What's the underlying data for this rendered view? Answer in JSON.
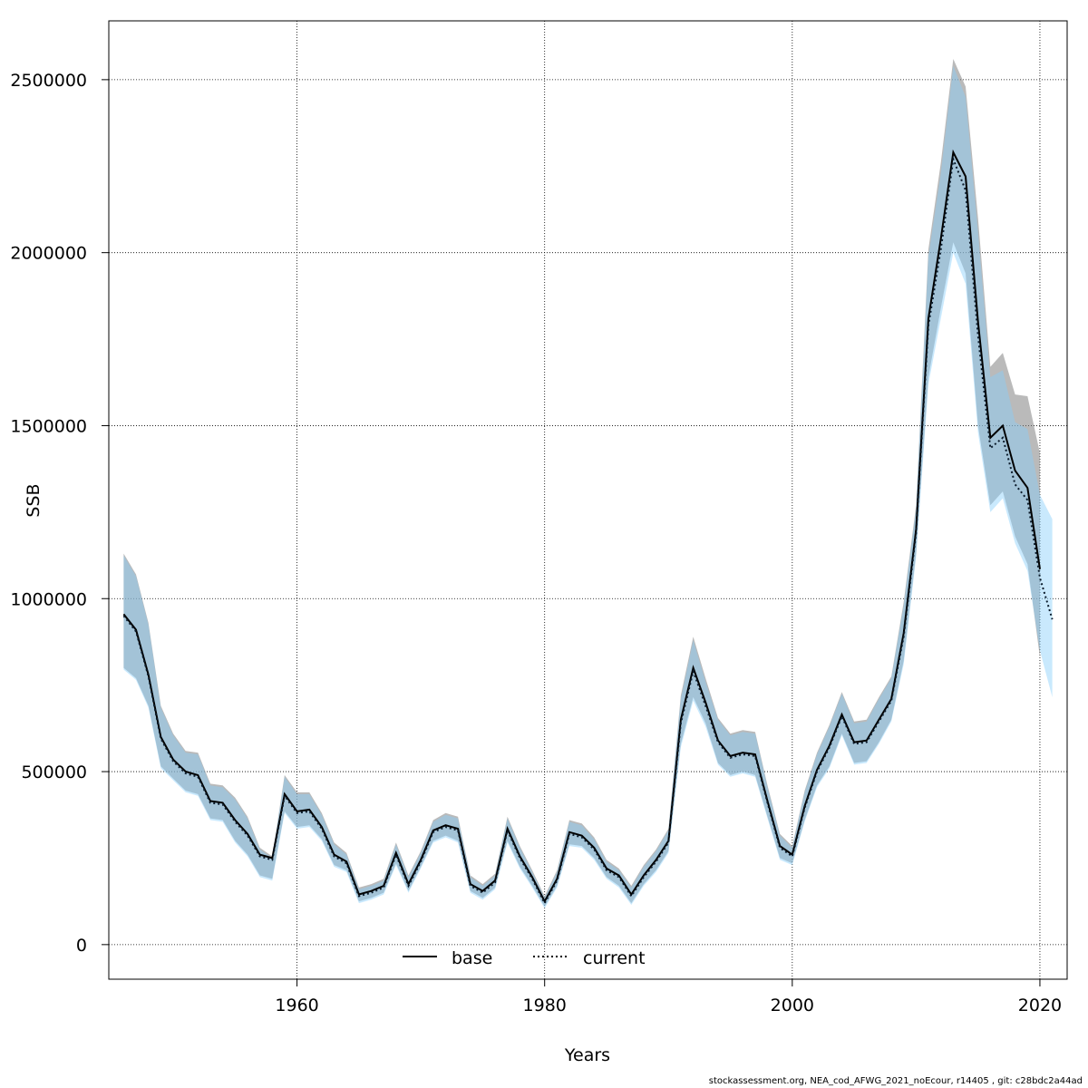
{
  "chart_data": {
    "type": "line",
    "xlabel": "Years",
    "ylabel": "SSB",
    "xlim": [
      1944.8,
      2022.2
    ],
    "ylim": [
      -100000,
      2670000
    ],
    "x_ticks": [
      1960,
      1980,
      2000,
      2020
    ],
    "y_ticks": [
      0,
      500000,
      1000000,
      1500000,
      2000000,
      2500000
    ],
    "x_tick_labels": [
      "1960",
      "1980",
      "2000",
      "2020"
    ],
    "y_tick_labels": [
      "0",
      "500000",
      "1000000",
      "1500000",
      "2000000",
      "2500000"
    ],
    "grid": true,
    "legend_position": "bottom",
    "legend": [
      {
        "label": "base",
        "style": "solid",
        "color": "#000000"
      },
      {
        "label": "current",
        "style": "dotted",
        "color": "#000000"
      }
    ],
    "band_colors": {
      "base": "rgba(130,130,130,0.55)",
      "current": "rgba(135,206,250,0.45)"
    },
    "series": [
      {
        "name": "base",
        "x": [
          1946,
          1947,
          1948,
          1949,
          1950,
          1951,
          1952,
          1953,
          1954,
          1955,
          1956,
          1957,
          1958,
          1959,
          1960,
          1961,
          1962,
          1963,
          1964,
          1965,
          1966,
          1967,
          1968,
          1969,
          1970,
          1971,
          1972,
          1973,
          1974,
          1975,
          1976,
          1977,
          1978,
          1979,
          1980,
          1981,
          1982,
          1983,
          1984,
          1985,
          1986,
          1987,
          1988,
          1989,
          1990,
          1991,
          1992,
          1993,
          1994,
          1995,
          1996,
          1997,
          1998,
          1999,
          2000,
          2001,
          2002,
          2003,
          2004,
          2005,
          2006,
          2007,
          2008,
          2009,
          2010,
          2011,
          2012,
          2013,
          2014,
          2015,
          2016,
          2017,
          2018,
          2019,
          2020
        ],
        "values": [
          955000,
          910000,
          780000,
          600000,
          535000,
          500000,
          490000,
          415000,
          410000,
          360000,
          320000,
          260000,
          250000,
          435000,
          385000,
          390000,
          340000,
          260000,
          240000,
          145000,
          155000,
          170000,
          265000,
          175000,
          245000,
          330000,
          345000,
          335000,
          175000,
          155000,
          185000,
          335000,
          255000,
          195000,
          125000,
          190000,
          325000,
          315000,
          280000,
          220000,
          200000,
          145000,
          200000,
          245000,
          300000,
          650000,
          800000,
          700000,
          590000,
          545000,
          555000,
          550000,
          415000,
          285000,
          260000,
          400000,
          505000,
          575000,
          665000,
          585000,
          590000,
          650000,
          710000,
          900000,
          1200000,
          1810000,
          2040000,
          2290000,
          2220000,
          1800000,
          1465000,
          1500000,
          1370000,
          1320000,
          1085000
        ],
        "lower": [
          800000,
          770000,
          690000,
          515000,
          480000,
          445000,
          435000,
          365000,
          360000,
          300000,
          260000,
          200000,
          190000,
          385000,
          340000,
          345000,
          305000,
          230000,
          215000,
          125000,
          135000,
          150000,
          235000,
          155000,
          225000,
          300000,
          315000,
          300000,
          155000,
          135000,
          165000,
          300000,
          225000,
          170000,
          110000,
          170000,
          290000,
          285000,
          250000,
          195000,
          170000,
          120000,
          175000,
          215000,
          270000,
          580000,
          715000,
          640000,
          525000,
          490000,
          500000,
          490000,
          370000,
          250000,
          235000,
          360000,
          460000,
          515000,
          610000,
          525000,
          530000,
          585000,
          650000,
          820000,
          1130000,
          1640000,
          1840000,
          2030000,
          1940000,
          1500000,
          1270000,
          1310000,
          1180000,
          1100000,
          830000
        ],
        "upper": [
          1130000,
          1070000,
          930000,
          690000,
          610000,
          560000,
          555000,
          465000,
          460000,
          425000,
          370000,
          280000,
          255000,
          490000,
          440000,
          440000,
          380000,
          295000,
          265000,
          165000,
          175000,
          190000,
          295000,
          200000,
          270000,
          360000,
          380000,
          370000,
          200000,
          175000,
          205000,
          370000,
          285000,
          215000,
          140000,
          215000,
          360000,
          350000,
          310000,
          245000,
          220000,
          170000,
          230000,
          275000,
          335000,
          720000,
          890000,
          770000,
          655000,
          610000,
          620000,
          615000,
          460000,
          320000,
          285000,
          445000,
          555000,
          635000,
          730000,
          645000,
          650000,
          715000,
          775000,
          990000,
          1270000,
          2010000,
          2260000,
          2560000,
          2480000,
          2100000,
          1670000,
          1710000,
          1590000,
          1585000,
          1420000
        ]
      },
      {
        "name": "current",
        "x": [
          1946,
          1947,
          1948,
          1949,
          1950,
          1951,
          1952,
          1953,
          1954,
          1955,
          1956,
          1957,
          1958,
          1959,
          1960,
          1961,
          1962,
          1963,
          1964,
          1965,
          1966,
          1967,
          1968,
          1969,
          1970,
          1971,
          1972,
          1973,
          1974,
          1975,
          1976,
          1977,
          1978,
          1979,
          1980,
          1981,
          1982,
          1983,
          1984,
          1985,
          1986,
          1987,
          1988,
          1989,
          1990,
          1991,
          1992,
          1993,
          1994,
          1995,
          1996,
          1997,
          1998,
          1999,
          2000,
          2001,
          2002,
          2003,
          2004,
          2005,
          2006,
          2007,
          2008,
          2009,
          2010,
          2011,
          2012,
          2013,
          2014,
          2015,
          2016,
          2017,
          2018,
          2019,
          2020,
          2021
        ],
        "values": [
          950000,
          905000,
          775000,
          595000,
          530000,
          495000,
          485000,
          410000,
          405000,
          355000,
          315000,
          255000,
          245000,
          430000,
          380000,
          385000,
          335000,
          255000,
          235000,
          140000,
          150000,
          165000,
          260000,
          170000,
          240000,
          325000,
          340000,
          330000,
          170000,
          150000,
          180000,
          330000,
          250000,
          190000,
          120000,
          185000,
          320000,
          310000,
          275000,
          215000,
          195000,
          140000,
          195000,
          240000,
          295000,
          640000,
          790000,
          690000,
          585000,
          540000,
          550000,
          545000,
          410000,
          280000,
          255000,
          395000,
          500000,
          570000,
          660000,
          580000,
          585000,
          645000,
          705000,
          890000,
          1190000,
          1790000,
          2010000,
          2270000,
          2180000,
          1760000,
          1435000,
          1465000,
          1330000,
          1285000,
          1060000,
          940000
        ],
        "lower": [
          795000,
          765000,
          685000,
          510000,
          475000,
          440000,
          430000,
          360000,
          355000,
          295000,
          255000,
          195000,
          185000,
          380000,
          335000,
          340000,
          300000,
          225000,
          210000,
          120000,
          130000,
          145000,
          230000,
          150000,
          220000,
          295000,
          310000,
          295000,
          150000,
          130000,
          160000,
          295000,
          220000,
          165000,
          105000,
          165000,
          285000,
          280000,
          245000,
          190000,
          165000,
          115000,
          170000,
          210000,
          265000,
          570000,
          705000,
          630000,
          520000,
          485000,
          495000,
          485000,
          365000,
          245000,
          230000,
          355000,
          455000,
          510000,
          605000,
          520000,
          525000,
          580000,
          645000,
          810000,
          1120000,
          1620000,
          1810000,
          2000000,
          1910000,
          1480000,
          1250000,
          1290000,
          1160000,
          1080000,
          850000,
          715000
        ],
        "upper": [
          1125000,
          1065000,
          925000,
          685000,
          605000,
          555000,
          550000,
          460000,
          455000,
          420000,
          365000,
          275000,
          250000,
          485000,
          435000,
          435000,
          375000,
          290000,
          260000,
          160000,
          170000,
          185000,
          290000,
          195000,
          265000,
          355000,
          375000,
          365000,
          195000,
          170000,
          200000,
          365000,
          280000,
          210000,
          135000,
          210000,
          355000,
          345000,
          305000,
          240000,
          215000,
          165000,
          225000,
          270000,
          330000,
          710000,
          880000,
          760000,
          650000,
          605000,
          615000,
          610000,
          455000,
          315000,
          280000,
          440000,
          550000,
          630000,
          725000,
          640000,
          645000,
          710000,
          770000,
          980000,
          1260000,
          1990000,
          2230000,
          2540000,
          2450000,
          2060000,
          1640000,
          1660000,
          1510000,
          1490000,
          1300000,
          1230000
        ]
      }
    ]
  },
  "credit_text": "stockassessment.org, NEA_cod_AFWG_2021_noEcour, r14405 , git: c28bdc2a44ad"
}
